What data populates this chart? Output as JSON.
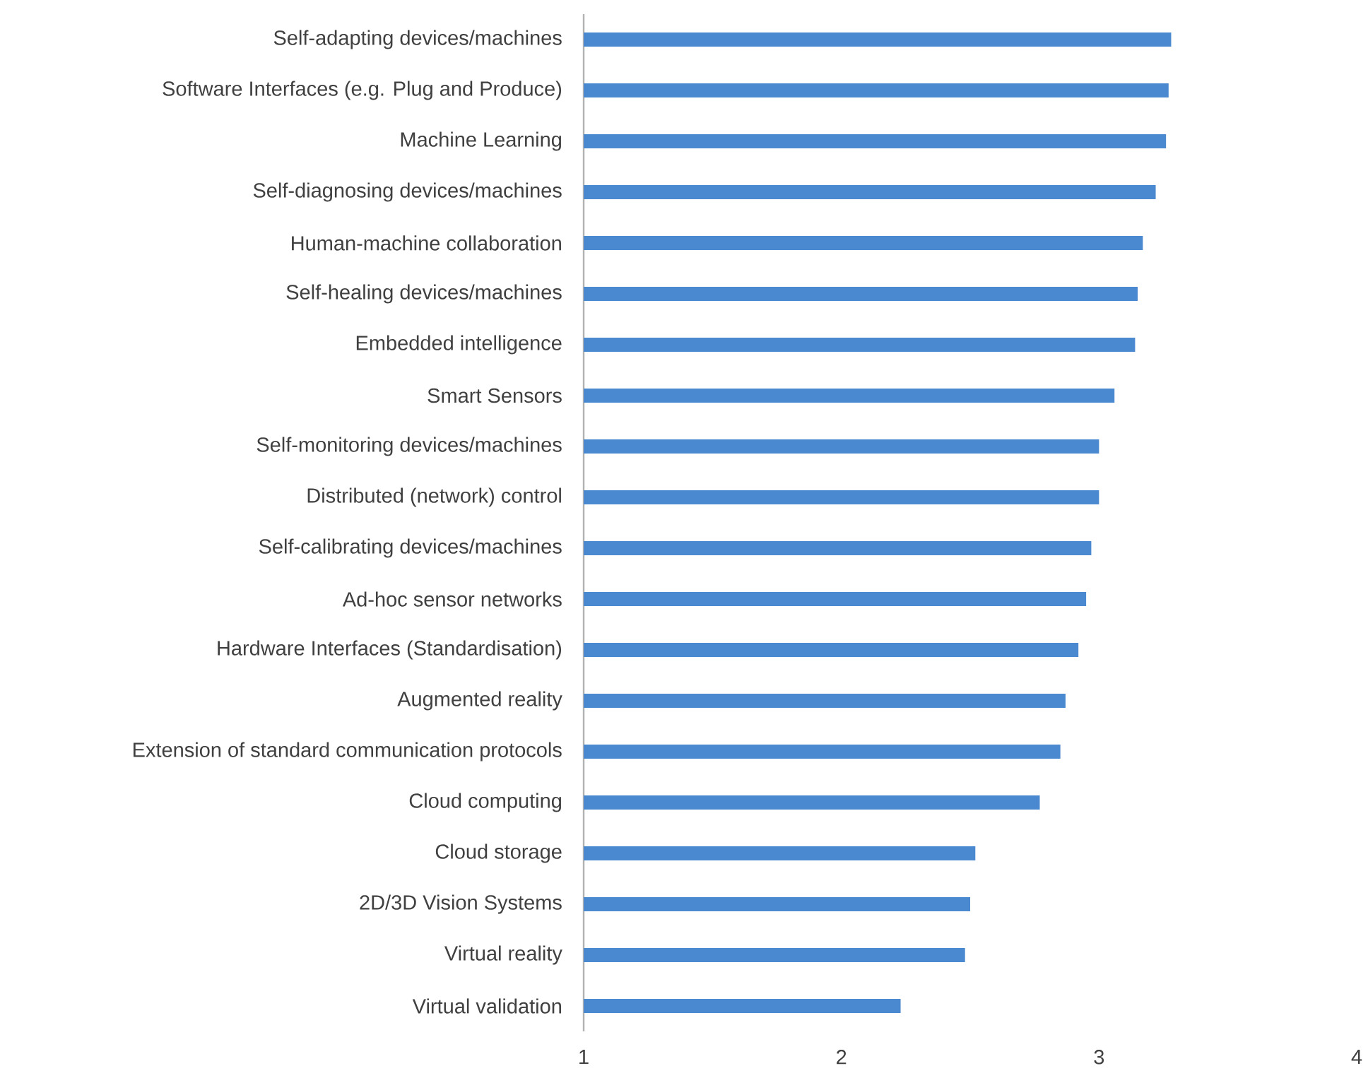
{
  "chart_data": {
    "type": "bar",
    "orientation": "horizontal",
    "categories": [
      "Self-adapting devices/machines",
      "Software Interfaces (e.g. Plug and Produce)",
      "Machine Learning",
      "Self-diagnosing devices/machines",
      "Human-machine collaboration",
      "Self-healing devices/machines",
      "Embedded intelligence",
      "Smart Sensors",
      "Self-monitoring devices/machines",
      "Distributed (network) control",
      "Self-calibrating devices/machines",
      "Ad-hoc sensor networks",
      "Hardware Interfaces (Standardisation)",
      "Augmented reality",
      "Extension of standard communication protocols",
      "Cloud computing",
      "Cloud storage",
      "2D/3D Vision Systems",
      "Virtual reality",
      "Virtual validation"
    ],
    "values": [
      3.28,
      3.27,
      3.26,
      3.22,
      3.17,
      3.15,
      3.14,
      3.06,
      3.0,
      3.0,
      2.97,
      2.95,
      2.92,
      2.87,
      2.85,
      2.77,
      2.52,
      2.5,
      2.48,
      2.23
    ],
    "color": "#4a89d0",
    "xlim": [
      1,
      4
    ],
    "xticks": [
      1,
      2,
      3,
      4
    ]
  }
}
